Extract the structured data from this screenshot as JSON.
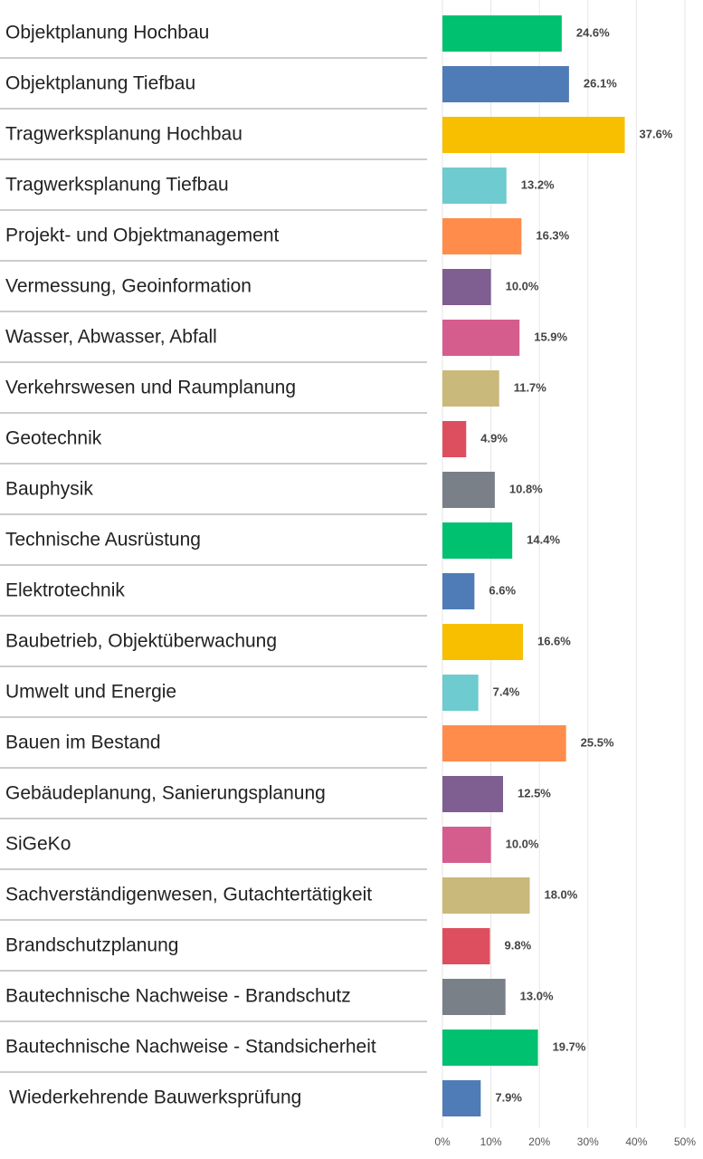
{
  "chart_data": {
    "type": "bar",
    "orientation": "horizontal",
    "categories": [
      "Objektplanung Hochbau",
      "Objektplanung Tiefbau",
      "Tragwerksplanung Hochbau",
      "Tragwerksplanung Tiefbau",
      "Projekt- und Objektmanagement",
      "Vermessung, Geoinformation",
      "Wasser, Abwasser, Abfall",
      "Verkehrswesen und Raumplanung",
      "Geotechnik",
      "Bauphysik",
      "Technische Ausrüstung",
      "Elektrotechnik",
      "Baubetrieb, Objektüberwachung",
      "Umwelt und Energie",
      "Bauen im Bestand",
      "Gebäudeplanung, Sanierungsplanung",
      "SiGeKo",
      "Sachverständigenwesen, Gutachtertätigkeit",
      "Brandschutzplanung",
      "Bautechnische Nachweise - Brandschutz",
      "Bautechnische Nachweise - Standsicherheit",
      "Wiederkehrende Bauwerksprüfung"
    ],
    "values": [
      24.6,
      26.1,
      37.6,
      13.2,
      16.3,
      10.0,
      15.9,
      11.7,
      4.9,
      10.8,
      14.4,
      6.6,
      16.6,
      7.4,
      25.5,
      12.5,
      10.0,
      18.0,
      9.8,
      13.0,
      19.7,
      7.9
    ],
    "value_labels": [
      "24.6%",
      "26.1%",
      "37.6%",
      "13.2%",
      "16.3%",
      "10.0%",
      "15.9%",
      "11.7%",
      "4.9%",
      "10.8%",
      "14.4%",
      "6.6%",
      "16.6%",
      "7.4%",
      "25.5%",
      "12.5%",
      "10.0%",
      "18.0%",
      "9.8%",
      "13.0%",
      "19.7%",
      "7.9%"
    ],
    "colors": [
      "#00c170",
      "#4f7cb6",
      "#f8be00",
      "#6ecbcf",
      "#ff8c4b",
      "#7f5e91",
      "#d55d8e",
      "#c9b97a",
      "#dd4f5f",
      "#7a8088"
    ],
    "xlim": [
      0,
      50
    ],
    "xticks": [
      {
        "value": 0,
        "label": "0%"
      },
      {
        "value": 10,
        "label": "10%"
      },
      {
        "value": 20,
        "label": "20%"
      },
      {
        "value": 30,
        "label": "30%"
      },
      {
        "value": 40,
        "label": "40%"
      },
      {
        "value": 50,
        "label": "50%"
      }
    ],
    "grid": true
  }
}
